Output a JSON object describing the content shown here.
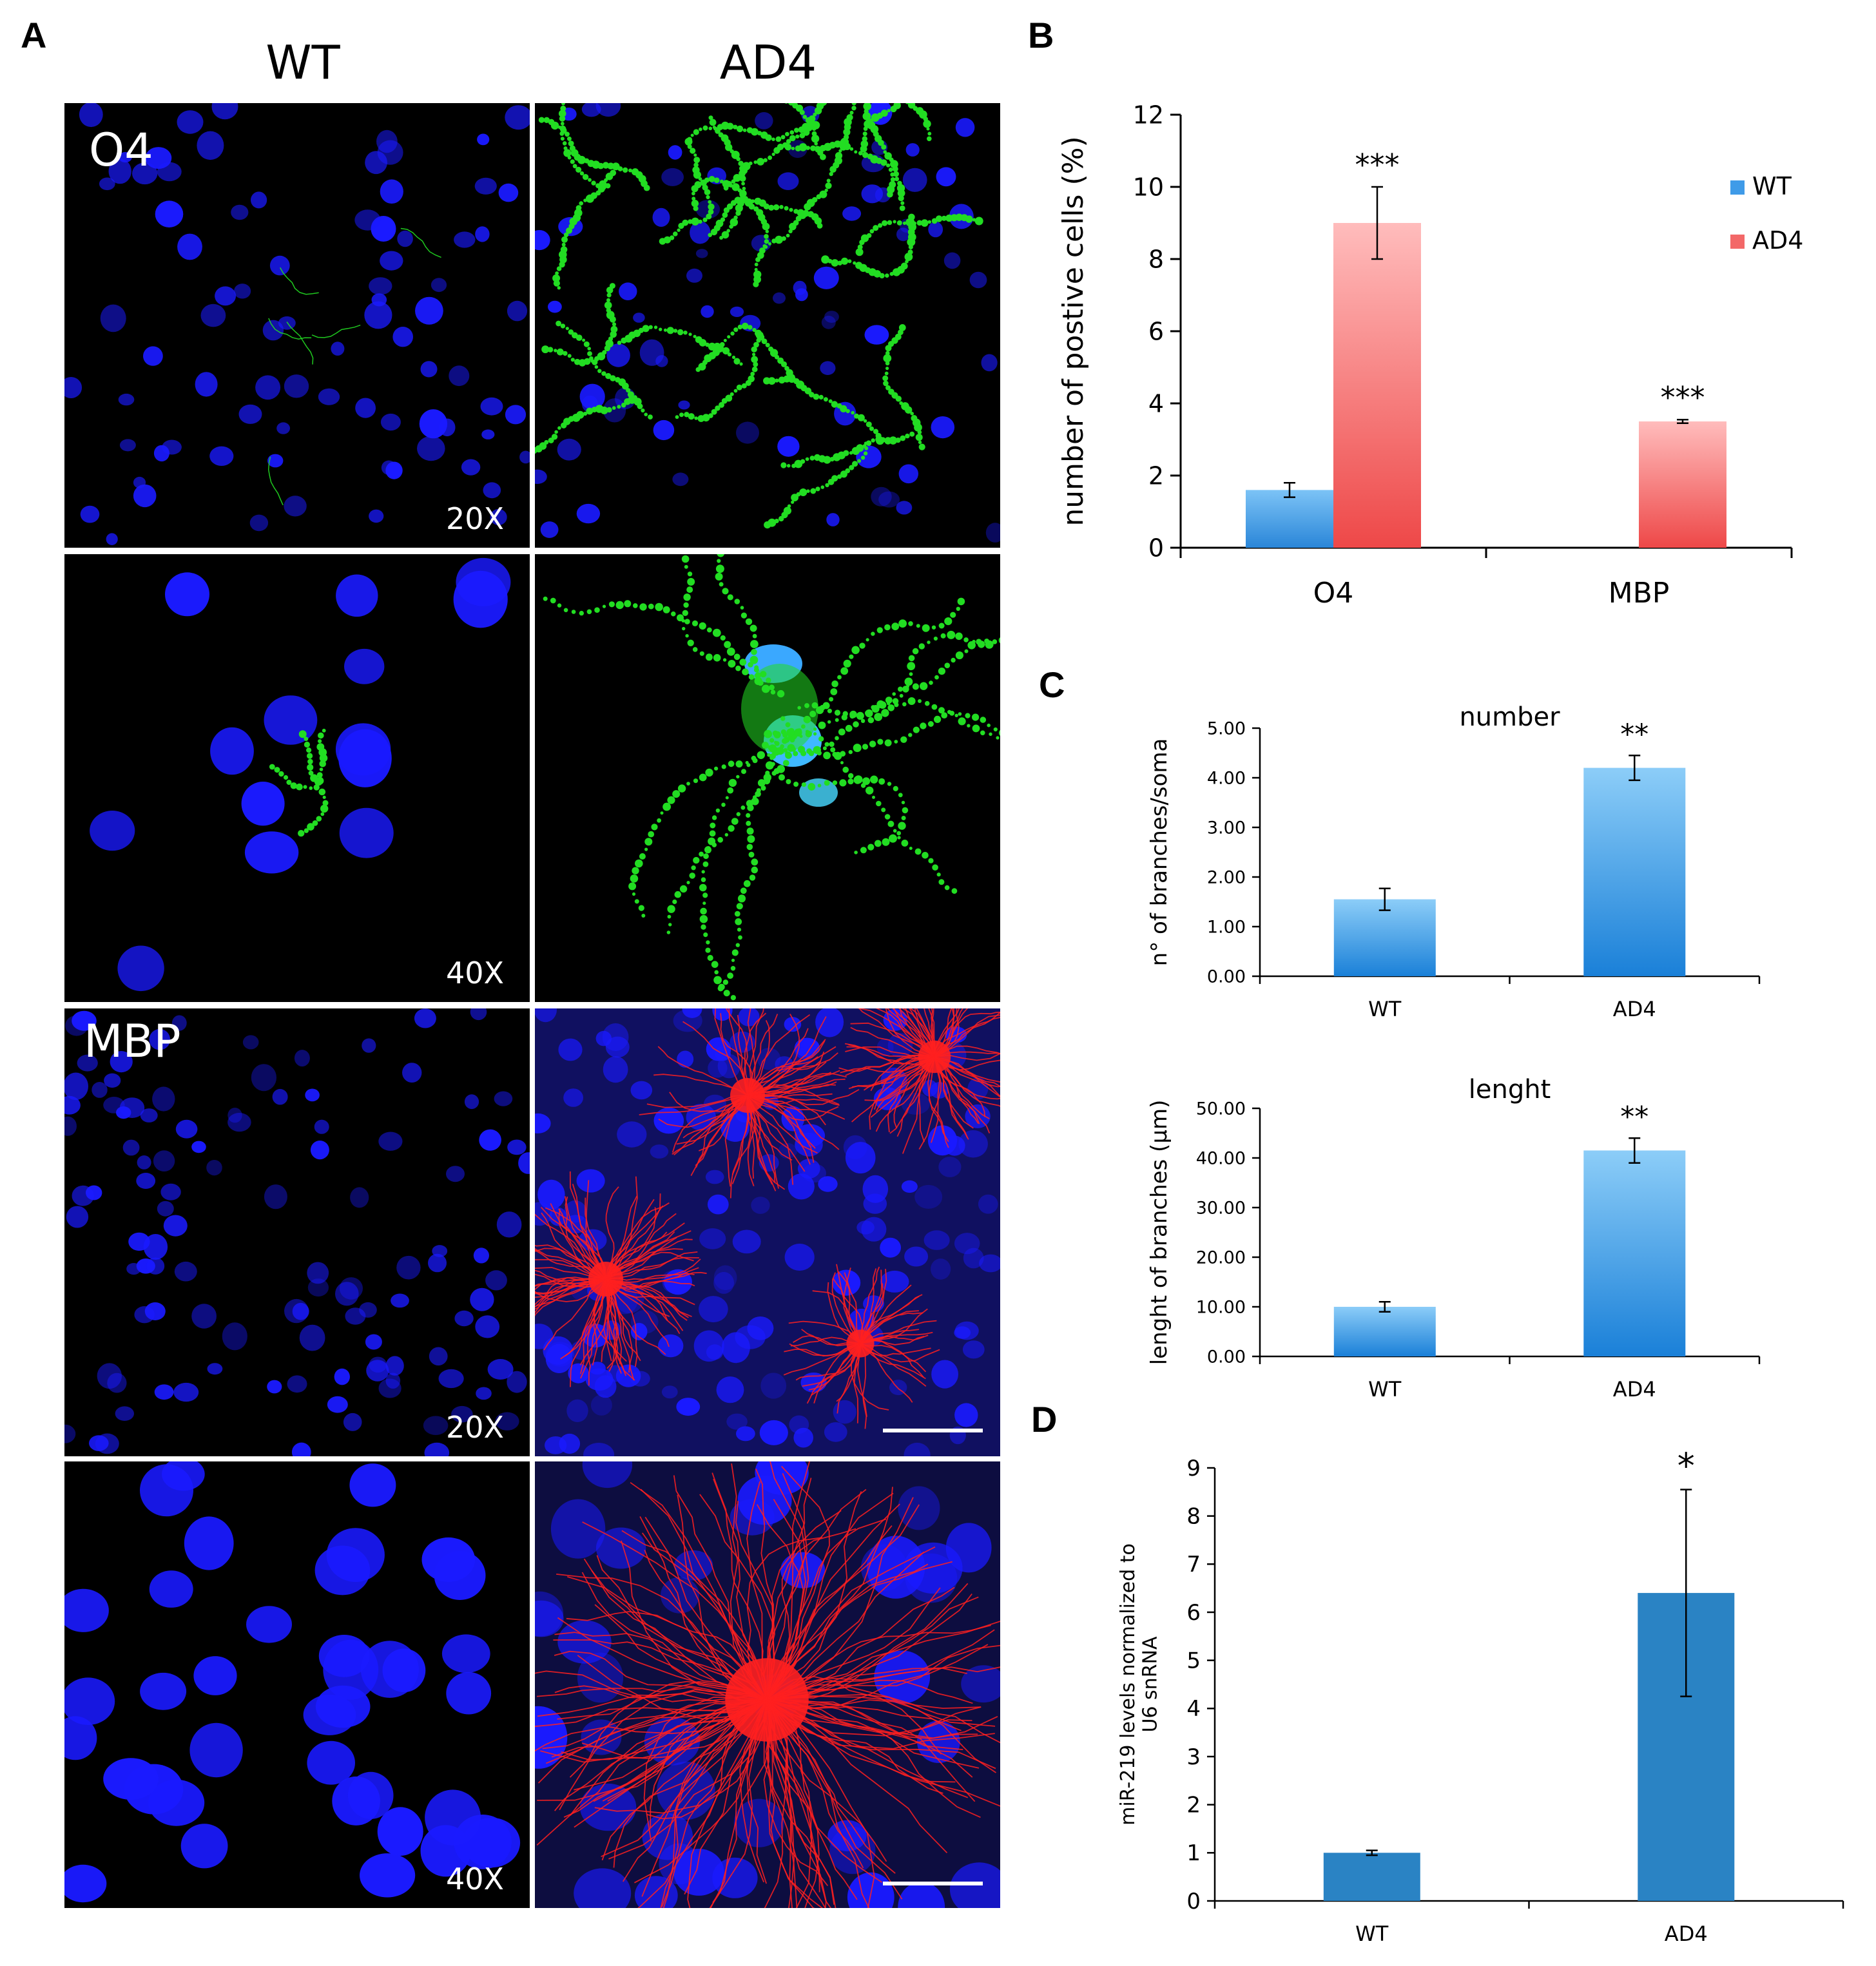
{
  "panels": {
    "A": "A",
    "B": "B",
    "C": "C",
    "D": "D"
  },
  "micrographs": {
    "col_wt": "WT",
    "col_ad4": "AD4",
    "row_o4": "O4",
    "row_mbp": "MBP",
    "mag_20x": "20X",
    "mag_40x": "40X",
    "colors": {
      "nuclei": "#1a1aff",
      "o4": "#22dd22",
      "mbp": "#ff2020",
      "background": "#000000"
    }
  },
  "chart_data": [
    {
      "id": "B",
      "type": "bar",
      "categories": [
        "O4",
        "MBP"
      ],
      "series": [
        {
          "name": "WT",
          "values": [
            1.6,
            0.0
          ],
          "errors": [
            0.2,
            0.0
          ],
          "color": "#3f9be8"
        },
        {
          "name": "AD4",
          "values": [
            9.0,
            3.5
          ],
          "errors": [
            1.0,
            0.05
          ],
          "color": "#f36868"
        }
      ],
      "significance": [
        "***",
        "***"
      ],
      "ylabel": "number of postive cells (%)",
      "ylim": [
        0,
        12
      ],
      "yticks": [
        "0",
        "2",
        "4",
        "6",
        "8",
        "10",
        "12"
      ],
      "legend": "top-right",
      "grid": false
    },
    {
      "id": "C-number",
      "type": "bar",
      "title": "number",
      "categories": [
        "WT",
        "AD4"
      ],
      "values": [
        1.55,
        4.2
      ],
      "errors": [
        0.22,
        0.25
      ],
      "significance": [
        "",
        "**"
      ],
      "ylabel": "n° of branches/soma",
      "ylim": [
        0,
        5
      ],
      "yticks": [
        "0.00",
        "1.00",
        "2.00",
        "3.00",
        "4.00",
        "5.00"
      ],
      "color": "#3d9be6",
      "grid": false
    },
    {
      "id": "C-length",
      "type": "bar",
      "title": "lenght",
      "categories": [
        "WT",
        "AD4"
      ],
      "values": [
        10.0,
        41.5
      ],
      "errors": [
        1.0,
        2.5
      ],
      "significance": [
        "",
        "**"
      ],
      "ylabel": "lenght of branches (µm)",
      "ylim": [
        0,
        50
      ],
      "yticks": [
        "0.00",
        "10.00",
        "20.00",
        "30.00",
        "40.00",
        "50.00"
      ],
      "color": "#3d9be6",
      "grid": false
    },
    {
      "id": "D",
      "type": "bar",
      "categories": [
        "WT",
        "AD4"
      ],
      "values": [
        1.0,
        6.4
      ],
      "errors": [
        0.05,
        2.15
      ],
      "significance": [
        "",
        "*"
      ],
      "ylabel": [
        "miR-219 levels normalized to",
        "U6 snRNA"
      ],
      "ylim": [
        0,
        9
      ],
      "yticks": [
        "0",
        "1",
        "2",
        "3",
        "4",
        "5",
        "6",
        "7",
        "8",
        "9"
      ],
      "color": "#2a83c4",
      "grid": false
    }
  ]
}
